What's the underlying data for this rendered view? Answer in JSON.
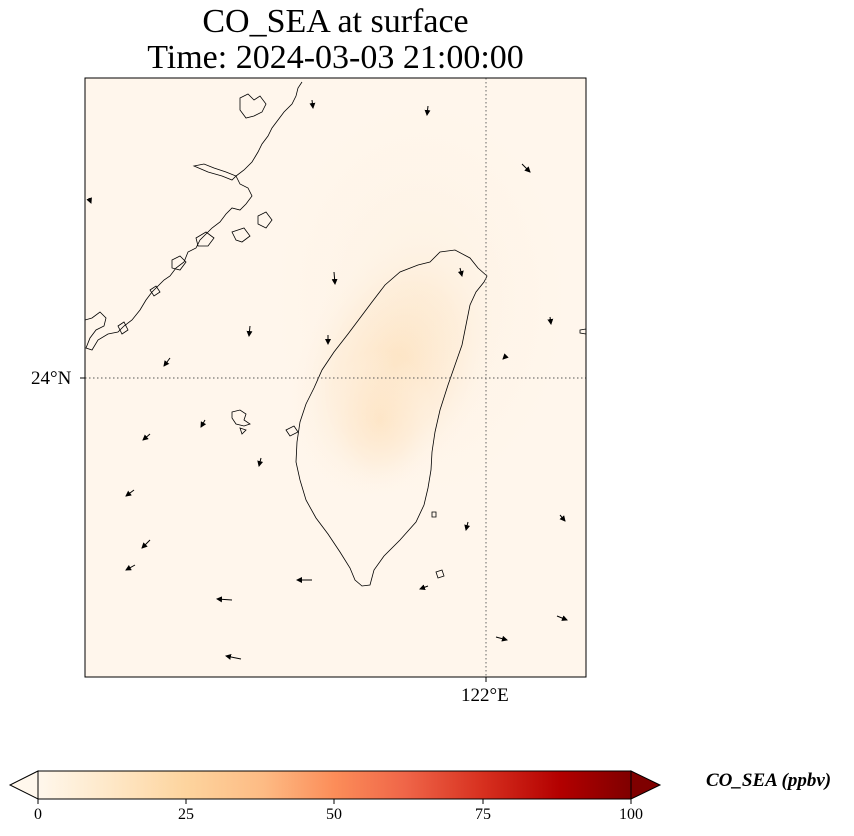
{
  "title": {
    "line1": "CO_SEA at surface",
    "line2": "Time: 2024-03-03 21:00:00"
  },
  "map": {
    "lat_label": "24°N",
    "lon_label": "122°E",
    "gridline_style": "dotted",
    "field_peak_ppbv": 15
  },
  "colorbar": {
    "label": "CO_SEA (ppbv)",
    "ticks": [
      "0",
      "25",
      "50",
      "75",
      "100"
    ],
    "min": 0,
    "max": 100,
    "extend": "both",
    "colormap": [
      "#fff5eb",
      "#fee6ce",
      "#fdd0a2",
      "#fdae6b",
      "#fd8d3c",
      "#f16913",
      "#d94801",
      "#a63603",
      "#7f2704"
    ],
    "colormap_name": "OrRd-like",
    "reference_colors": [
      "#fff7ec",
      "#fdd49e",
      "#fc8d59",
      "#d7301f",
      "#7f0000"
    ]
  }
}
